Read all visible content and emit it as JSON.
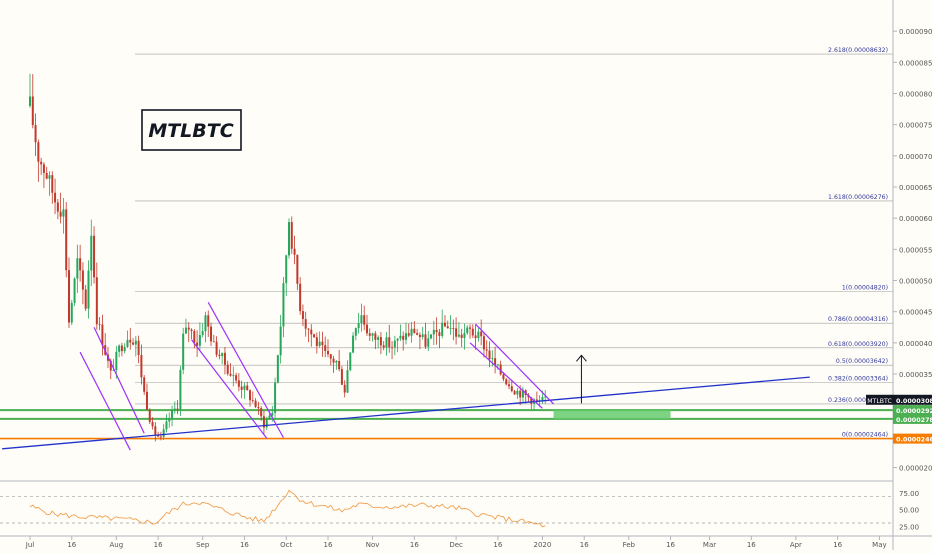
{
  "chart_data": {
    "type": "candlestick",
    "symbol_label": "MTLBTC",
    "price_axis": {
      "ylim": [
        1.8e-05,
        9.5e-05
      ],
      "ticks": [
        "0.00009000",
        "0.00008500",
        "0.00008000",
        "0.00007500",
        "0.00007000",
        "0.00006500",
        "0.00006000",
        "0.00005500",
        "0.00005000",
        "0.00004500",
        "0.00004000",
        "0.00003500",
        "0.00003000",
        "0.00002500",
        "0.00002000"
      ]
    },
    "time_axis": {
      "ticks": [
        {
          "label": "Jul",
          "day": 0
        },
        {
          "label": "16",
          "day": 15
        },
        {
          "label": "Aug",
          "day": 31
        },
        {
          "label": "16",
          "day": 46
        },
        {
          "label": "Sep",
          "day": 62
        },
        {
          "label": "16",
          "day": 77
        },
        {
          "label": "Oct",
          "day": 92
        },
        {
          "label": "16",
          "day": 107
        },
        {
          "label": "Nov",
          "day": 123
        },
        {
          "label": "16",
          "day": 138
        },
        {
          "label": "Dec",
          "day": 153
        },
        {
          "label": "16",
          "day": 168
        },
        {
          "label": "2020",
          "day": 184
        },
        {
          "label": "16",
          "day": 199
        },
        {
          "label": "Feb",
          "day": 215
        },
        {
          "label": "16",
          "day": 230
        },
        {
          "label": "Mar",
          "day": 244
        },
        {
          "label": "16",
          "day": 259
        },
        {
          "label": "Apr",
          "day": 275
        },
        {
          "label": "16",
          "day": 290
        },
        {
          "label": "May",
          "day": 305
        }
      ]
    },
    "fib_levels": [
      {
        "label": "2.618(0.00008632)",
        "value": 8.632e-05
      },
      {
        "label": "1.618(0.00006276)",
        "value": 6.276e-05
      },
      {
        "label": "1(0.00004820)",
        "value": 4.82e-05
      },
      {
        "label": "0.786(0.00004316)",
        "value": 4.316e-05
      },
      {
        "label": "0.618(0.00003920)",
        "value": 3.92e-05
      },
      {
        "label": "0.5(0.00003642)",
        "value": 3.642e-05
      },
      {
        "label": "0.382(0.00003364)",
        "value": 3.364e-05
      },
      {
        "label": "0.236(0.00003020)",
        "value": 3.02e-05
      },
      {
        "label": "0(0.00002464)",
        "value": 2.464e-05
      }
    ],
    "price_badges": [
      {
        "text": "MTLBTC",
        "value": "0.00003087",
        "color": "#131722"
      },
      {
        "text": "",
        "value": "0.00002921",
        "color": "#4caf50"
      },
      {
        "text": "",
        "value": "0.00002780",
        "color": "#4caf50"
      },
      {
        "text": "",
        "value": "0.00002464",
        "color": "#f57c00"
      }
    ],
    "support_lines": [
      {
        "value": 2.921e-05,
        "color": "#4caf50"
      },
      {
        "value": 2.78e-05,
        "color": "#4caf50"
      },
      {
        "value": 2.464e-05,
        "color": "#f57c00"
      }
    ],
    "green_zone": {
      "from_day": 188,
      "to_day": 230,
      "low": 2.78e-05,
      "high": 2.921e-05
    },
    "trendline": {
      "color": "#2233cc",
      "points": [
        [
          -10,
          2.3e-05
        ],
        [
          280,
          3.45e-05
        ]
      ]
    },
    "channels": [
      {
        "color": "#9b30ff",
        "upper": [
          [
            23,
            4.25e-05
          ],
          [
            41,
            2.55e-05
          ]
        ],
        "lower": [
          [
            18,
            3.85e-05
          ],
          [
            36,
            2.28e-05
          ]
        ]
      },
      {
        "color": "#9b30ff",
        "upper": [
          [
            64,
            4.65e-05
          ],
          [
            91,
            2.48e-05
          ]
        ],
        "lower": [
          [
            58,
            4.05e-05
          ],
          [
            85,
            2.47e-05
          ]
        ]
      },
      {
        "color": "#9b30ff",
        "upper": [
          [
            160,
            4.3e-05
          ],
          [
            188,
            3.02e-05
          ]
        ],
        "lower": [
          [
            158,
            4e-05
          ],
          [
            184,
            2.95e-05
          ]
        ]
      }
    ],
    "arrow": {
      "day": 198,
      "from": 3.03e-05,
      "to": 3.8e-05
    },
    "ohlc_anchors": [
      [
        0,
        7.8e-05
      ],
      [
        3,
        7e-05
      ],
      [
        6,
        6.7e-05
      ],
      [
        9,
        6.3e-05
      ],
      [
        12,
        6.1e-05
      ],
      [
        14,
        4.35e-05
      ],
      [
        17,
        5.3e-05
      ],
      [
        20,
        4.6e-05
      ],
      [
        22,
        5.8e-05
      ],
      [
        24,
        4.4e-05
      ],
      [
        26,
        4.05e-05
      ],
      [
        29,
        3.5e-05
      ],
      [
        32,
        3.9e-05
      ],
      [
        35,
        4.1e-05
      ],
      [
        38,
        4.05e-05
      ],
      [
        41,
        3.2e-05
      ],
      [
        44,
        2.6e-05
      ],
      [
        47,
        2.45e-05
      ],
      [
        50,
        2.8e-05
      ],
      [
        53,
        3e-05
      ],
      [
        55,
        4.1e-05
      ],
      [
        57,
        4.25e-05
      ],
      [
        60,
        4e-05
      ],
      [
        63,
        4.4e-05
      ],
      [
        66,
        3.95e-05
      ],
      [
        69,
        3.75e-05
      ],
      [
        72,
        3.5e-05
      ],
      [
        75,
        3.35e-05
      ],
      [
        78,
        3.2e-05
      ],
      [
        81,
        3e-05
      ],
      [
        84,
        2.7e-05
      ],
      [
        87,
        2.9e-05
      ],
      [
        90,
        4.3e-05
      ],
      [
        93,
        6e-05
      ],
      [
        95,
        5.3e-05
      ],
      [
        97,
        4.6e-05
      ],
      [
        99,
        4.3e-05
      ],
      [
        103,
        4e-05
      ],
      [
        107,
        3.75e-05
      ],
      [
        110,
        3.7e-05
      ],
      [
        113,
        3.25e-05
      ],
      [
        116,
        4.2e-05
      ],
      [
        119,
        4.45e-05
      ],
      [
        122,
        4.1e-05
      ],
      [
        126,
        4.05e-05
      ],
      [
        130,
        3.95e-05
      ],
      [
        134,
        4.1e-05
      ],
      [
        138,
        4.2e-05
      ],
      [
        142,
        4e-05
      ],
      [
        146,
        4.15e-05
      ],
      [
        150,
        4.3e-05
      ],
      [
        154,
        4.1e-05
      ],
      [
        158,
        4.2e-05
      ],
      [
        162,
        4.05e-05
      ],
      [
        166,
        3.7e-05
      ],
      [
        170,
        3.45e-05
      ],
      [
        174,
        3.25e-05
      ],
      [
        178,
        3.15e-05
      ],
      [
        182,
        3.05e-05
      ],
      [
        185,
        3.087e-05
      ]
    ],
    "rsi": {
      "ylim": [
        15,
        90
      ],
      "ticks": [
        "75.00",
        "50.00",
        "25.00"
      ],
      "guide_levels": [
        70,
        30
      ],
      "anchors": [
        [
          0,
          55
        ],
        [
          8,
          44
        ],
        [
          16,
          40
        ],
        [
          24,
          38
        ],
        [
          32,
          36
        ],
        [
          40,
          33
        ],
        [
          45,
          30
        ],
        [
          50,
          46
        ],
        [
          55,
          58
        ],
        [
          60,
          62
        ],
        [
          66,
          54
        ],
        [
          72,
          46
        ],
        [
          78,
          38
        ],
        [
          84,
          33
        ],
        [
          90,
          62
        ],
        [
          93,
          80
        ],
        [
          96,
          68
        ],
        [
          100,
          60
        ],
        [
          106,
          55
        ],
        [
          112,
          48
        ],
        [
          118,
          58
        ],
        [
          124,
          55
        ],
        [
          132,
          54
        ],
        [
          140,
          57
        ],
        [
          148,
          55
        ],
        [
          154,
          52
        ],
        [
          160,
          44
        ],
        [
          168,
          38
        ],
        [
          176,
          33
        ],
        [
          182,
          28
        ],
        [
          185,
          26
        ]
      ]
    }
  }
}
